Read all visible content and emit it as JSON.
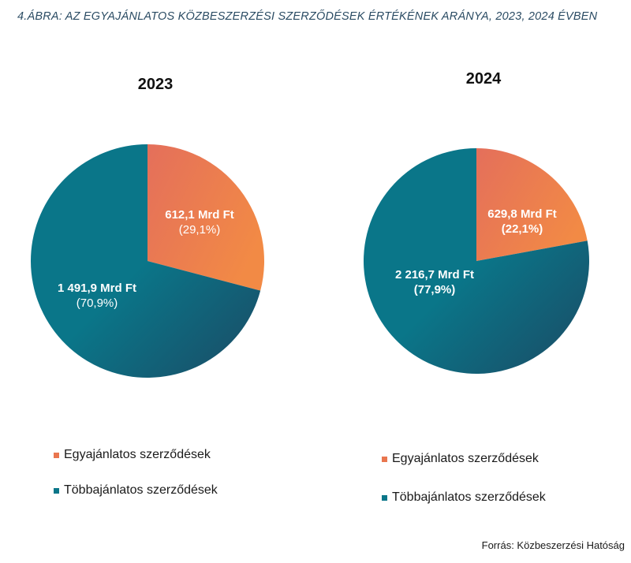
{
  "figure_title": "4.ÁBRA: AZ EGYAJÁNLATOS KÖZBESZERZÉSI SZERZŐDÉSEK ÉRTÉKÉNEK ARÁNYA, 2023, 2024 ÉVBEN",
  "source": "Forrás: Közbeszerzési Hatóság",
  "colors": {
    "single_bid_light": "#e46f5b",
    "single_bid_dark": "#f28a45",
    "multi_bid": "#0a7689",
    "multi_bid_dark": "#1b4a64"
  },
  "chart_data": [
    {
      "type": "pie",
      "title": "2023",
      "unit": "Mrd Ft",
      "slices": [
        {
          "name": "Egyajánlatos szerződések",
          "value": 612.1,
          "percent": 29.1,
          "value_label": "612,1 Mrd Ft",
          "percent_label": "(29,1%)"
        },
        {
          "name": "Többajánlatos szerződések",
          "value": 1491.9,
          "percent": 70.9,
          "value_label": "1 491,9 Mrd Ft",
          "percent_label": "(70,9%)"
        }
      ],
      "legend": [
        "Egyajánlatos szerződések",
        "Többajánlatos szerződések"
      ]
    },
    {
      "type": "pie",
      "title": "2024",
      "unit": "Mrd Ft",
      "slices": [
        {
          "name": "Egyajánlatos szerződések",
          "value": 629.8,
          "percent": 22.1,
          "value_label": "629,8 Mrd Ft",
          "percent_label": "(22,1%)"
        },
        {
          "name": "Többajánlatos szerződések",
          "value": 2216.7,
          "percent": 77.9,
          "value_label": "2 216,7 Mrd Ft",
          "percent_label": "(77,9%)"
        }
      ],
      "legend": [
        "Egyajánlatos szerződések",
        "Többajánlatos szerződések"
      ]
    }
  ]
}
